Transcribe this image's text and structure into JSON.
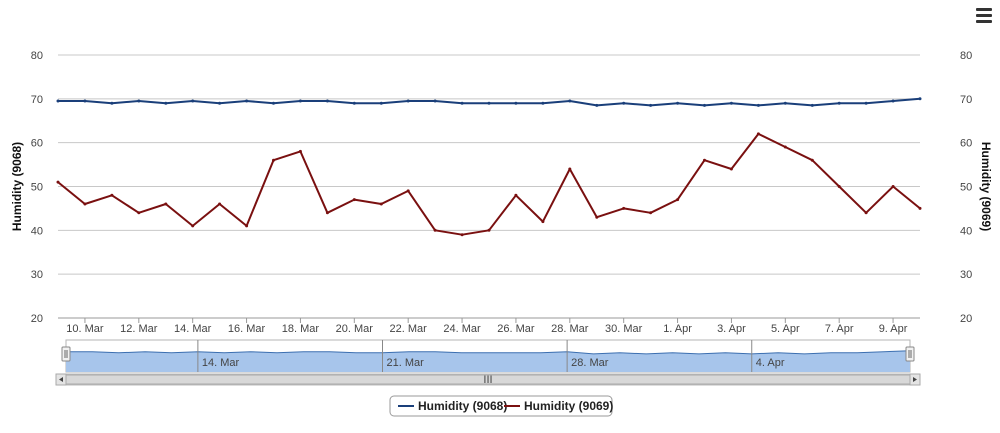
{
  "chart_data": {
    "type": "line",
    "x_range": [
      "2014-03-09",
      "2014-04-10"
    ],
    "x_ticks": [
      "10. Mar",
      "12. Mar",
      "14. Mar",
      "16. Mar",
      "18. Mar",
      "20. Mar",
      "22. Mar",
      "24. Mar",
      "26. Mar",
      "28. Mar",
      "30. Mar",
      "1. Apr",
      "3. Apr",
      "5. Apr",
      "7. Apr",
      "9. Apr"
    ],
    "y_left": {
      "label": "Humidity (9068)",
      "ylim": [
        20,
        80
      ],
      "ticks": [
        "20",
        "30",
        "40",
        "50",
        "60",
        "70",
        "80"
      ]
    },
    "y_right": {
      "label": "Humidity (9069)",
      "ylim": [
        20,
        80
      ],
      "ticks": [
        "20",
        "30",
        "40",
        "50",
        "60",
        "70",
        "80"
      ]
    },
    "grid": "horizontal",
    "legend_position": "bottom-center",
    "series": [
      {
        "name": "Humidity (9068)",
        "color": "#1a3f7a",
        "x": [
          "2014-03-09",
          "2014-03-10",
          "2014-03-11",
          "2014-03-12",
          "2014-03-13",
          "2014-03-14",
          "2014-03-15",
          "2014-03-16",
          "2014-03-17",
          "2014-03-18",
          "2014-03-19",
          "2014-03-20",
          "2014-03-21",
          "2014-03-22",
          "2014-03-23",
          "2014-03-24",
          "2014-03-25",
          "2014-03-26",
          "2014-03-27",
          "2014-03-28",
          "2014-03-29",
          "2014-03-30",
          "2014-03-31",
          "2014-04-01",
          "2014-04-02",
          "2014-04-03",
          "2014-04-04",
          "2014-04-05",
          "2014-04-06",
          "2014-04-07",
          "2014-04-08",
          "2014-04-09",
          "2014-04-10"
        ],
        "values": [
          69.5,
          69.5,
          69,
          69.5,
          69,
          69.5,
          69,
          69.5,
          69,
          69.5,
          69.5,
          69,
          69,
          69.5,
          69.5,
          69,
          69,
          69,
          69,
          69.5,
          68.5,
          69,
          68.5,
          69,
          68.5,
          69,
          68.5,
          69,
          68.5,
          69,
          69,
          69.5,
          70
        ]
      },
      {
        "name": "Humidity (9069)",
        "color": "#7a1010",
        "x": [
          "2014-03-09",
          "2014-03-10",
          "2014-03-11",
          "2014-03-12",
          "2014-03-13",
          "2014-03-14",
          "2014-03-15",
          "2014-03-16",
          "2014-03-17",
          "2014-03-18",
          "2014-03-19",
          "2014-03-20",
          "2014-03-21",
          "2014-03-22",
          "2014-03-23",
          "2014-03-24",
          "2014-03-25",
          "2014-03-26",
          "2014-03-27",
          "2014-03-28",
          "2014-03-29",
          "2014-03-30",
          "2014-03-31",
          "2014-04-01",
          "2014-04-02",
          "2014-04-03",
          "2014-04-04",
          "2014-04-05",
          "2014-04-06",
          "2014-04-07",
          "2014-04-08",
          "2014-04-09",
          "2014-04-10"
        ],
        "values": [
          51,
          46,
          48,
          44,
          46,
          41,
          46,
          41,
          56,
          58,
          44,
          47,
          46,
          49,
          40,
          39,
          40,
          48,
          42,
          54,
          43,
          45,
          44,
          47,
          56,
          54,
          62,
          59,
          56,
          50,
          44,
          50,
          45
        ]
      }
    ],
    "navigator": {
      "labels": [
        "14. Mar",
        "21. Mar",
        "28. Mar",
        "4. Apr"
      ],
      "scroll_grip": "III"
    }
  },
  "ui": {
    "menu_icon": "hamburger-menu-icon"
  }
}
